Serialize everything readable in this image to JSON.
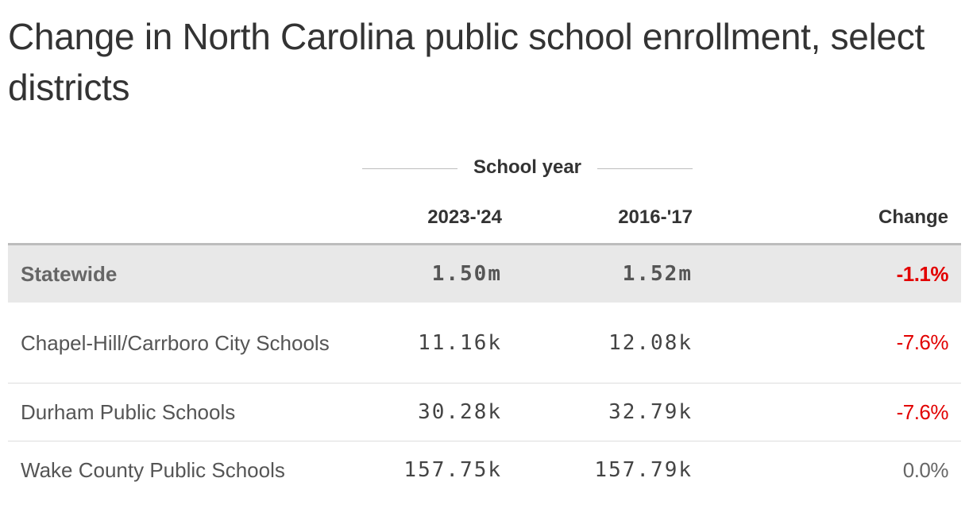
{
  "chart_data": {
    "type": "table",
    "title": "Change in North Carolina public school enrollment, select districts",
    "spanner_label": "School year",
    "columns": [
      "",
      "2023-'24",
      "2016-'17",
      "Change"
    ],
    "rows": [
      {
        "district": "Statewide",
        "y2023_24": "1.50m",
        "y2016_17": "1.52m",
        "change": "-1.1%",
        "highlight": true
      },
      {
        "district": "Chapel-Hill/Carrboro City Schools",
        "y2023_24": "11.16k",
        "y2016_17": "12.08k",
        "change": "-7.6%"
      },
      {
        "district": "Durham Public Schools",
        "y2023_24": "30.28k",
        "y2016_17": "32.79k",
        "change": "-7.6%"
      },
      {
        "district": "Wake County Public Schools",
        "y2023_24": "157.75k",
        "y2016_17": "157.79k",
        "change": "0.0%"
      }
    ],
    "colors": {
      "negative": "#e20000",
      "neutral": "#666666",
      "highlight_row": "#e8e8e8"
    }
  }
}
